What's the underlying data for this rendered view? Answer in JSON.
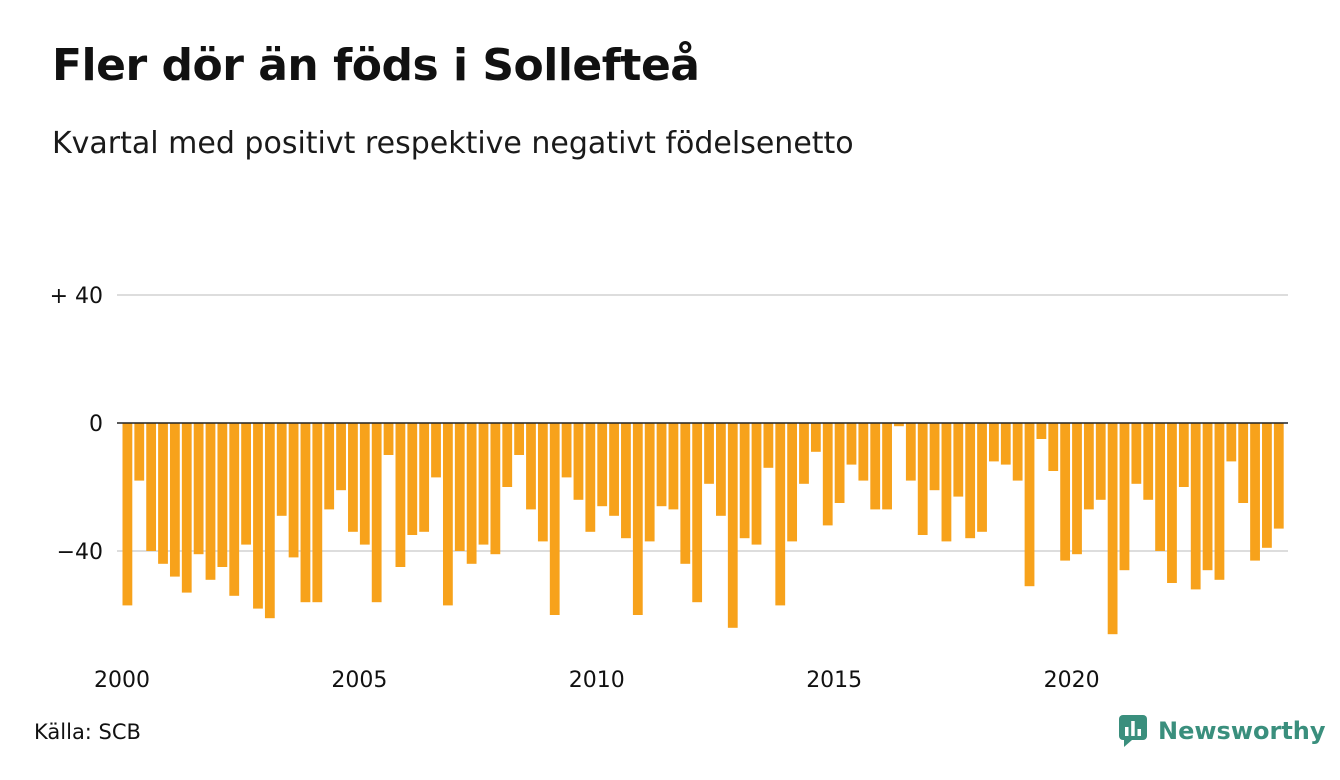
{
  "title": "Fler dör än föds i Sollefteå",
  "subtitle": "Kvartal med positivt respektive negativt födelsenetto",
  "source": "Källa: SCB",
  "brand": {
    "name": "Newsworthy",
    "logo_icon": "chart-bubble-icon",
    "color": "#3a8f7d"
  },
  "chart_data": {
    "type": "bar",
    "bar_color": "#f7a21b",
    "grid": true,
    "ylim": [
      -68,
      40
    ],
    "y_ticks": [
      {
        "value": 40,
        "label": "+ 40"
      },
      {
        "value": 0,
        "label": "0"
      },
      {
        "value": -40,
        "label": "−40"
      }
    ],
    "x_ticks": [
      {
        "year": 2000,
        "label": "2000"
      },
      {
        "year": 2005,
        "label": "2005"
      },
      {
        "year": 2010,
        "label": "2010"
      },
      {
        "year": 2015,
        "label": "2015"
      },
      {
        "year": 2020,
        "label": "2020"
      }
    ],
    "start": "2000 Q1",
    "end": "2024 Q2",
    "values": [
      -57,
      -18,
      -40,
      -44,
      -48,
      -53,
      -41,
      -49,
      -45,
      -54,
      -38,
      -58,
      -61,
      -29,
      -42,
      -56,
      -56,
      -27,
      -21,
      -34,
      -38,
      -56,
      -10,
      -45,
      -35,
      -34,
      -17,
      -57,
      -40,
      -44,
      -38,
      -41,
      -20,
      -10,
      -27,
      -37,
      -60,
      -17,
      -24,
      -34,
      -26,
      -29,
      -36,
      -60,
      -37,
      -26,
      -27,
      -44,
      -56,
      -19,
      -29,
      -64,
      -36,
      -38,
      -14,
      -57,
      -37,
      -19,
      -9,
      -32,
      -25,
      -13,
      -18,
      -27,
      -27,
      -1,
      -18,
      -35,
      -21,
      -37,
      -23,
      -36,
      -34,
      -12,
      -13,
      -18,
      -51,
      -5,
      -15,
      -43,
      -41,
      -27,
      -24,
      -66,
      -46,
      -19,
      -24,
      -40,
      -50,
      -20,
      -52,
      -46,
      -49,
      -12,
      -25,
      -43,
      -39,
      -33
    ]
  }
}
